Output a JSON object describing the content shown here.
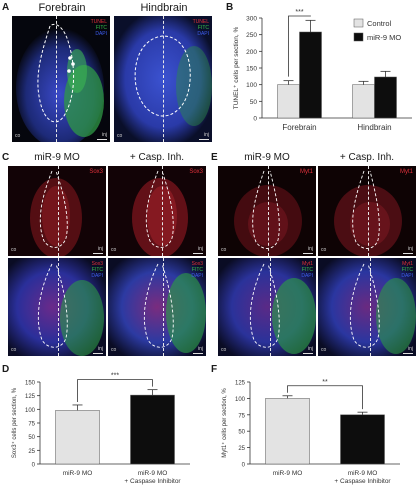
{
  "panels": {
    "A": {
      "letter": "A",
      "titles": [
        "Forebrain",
        "Hindbrain"
      ],
      "tags": [
        "TUNEL",
        "FITC",
        "DAPI"
      ],
      "co": "co",
      "inj": "inj"
    },
    "B": {
      "letter": "B"
    },
    "C": {
      "letter": "C",
      "titles": [
        "miR-9 MO",
        "+ Casp. Inh."
      ],
      "top_tags": [
        "Sox3"
      ],
      "bottom_tags": [
        "Sox3",
        "FITC",
        "DAPI"
      ],
      "co": "co",
      "inj": "inj"
    },
    "E": {
      "letter": "E",
      "titles": [
        "miR-9 MO",
        "+ Casp. Inh."
      ],
      "top_tags": [
        "Myt1"
      ],
      "bottom_tags": [
        "Myt1",
        "FITC",
        "DAPI"
      ],
      "co": "co",
      "inj": "inj"
    },
    "D": {
      "letter": "D"
    },
    "F": {
      "letter": "F"
    }
  },
  "colors": {
    "control_bar": "#e3e3e3",
    "mo_bar": "#0d0d0d",
    "tunel": "#e0303a",
    "fitc": "#37c24a",
    "dapi": "#3d5df0"
  },
  "chart_data": [
    {
      "id": "B",
      "type": "bar",
      "categories": [
        "Forebrain",
        "Hindbrain"
      ],
      "series": [
        {
          "name": "Control",
          "values": [
            100,
            100
          ],
          "errors": [
            12,
            10
          ]
        },
        {
          "name": "miR-9 MO",
          "values": [
            258,
            123
          ],
          "errors": [
            35,
            17
          ]
        }
      ],
      "ylabel": "TUNEL⁺ cells per section, %",
      "ylim": [
        0,
        300
      ],
      "yticks": [
        0,
        50,
        100,
        150,
        200,
        250,
        300
      ],
      "significance": "***",
      "legend": "top-right"
    },
    {
      "id": "D",
      "type": "bar",
      "categories": [
        "miR-9 MO",
        "miR-9 MO\n+ Caspase Inhibitor"
      ],
      "values": [
        98,
        126
      ],
      "errors": [
        10,
        10
      ],
      "colors": [
        "#e3e3e3",
        "#0d0d0d"
      ],
      "ylabel": "Sox3⁺ cells per section, %",
      "ylim": [
        0,
        150
      ],
      "yticks": [
        0,
        25,
        50,
        75,
        100,
        125,
        150
      ],
      "significance": "***"
    },
    {
      "id": "F",
      "type": "bar",
      "categories": [
        "miR-9 MO",
        "miR-9 MO\n+ Caspase Inhibitor"
      ],
      "values": [
        100,
        75
      ],
      "errors": [
        4,
        4
      ],
      "colors": [
        "#e3e3e3",
        "#0d0d0d"
      ],
      "ylabel": "Myt1⁺ cells per section, %",
      "ylim": [
        0,
        125
      ],
      "yticks": [
        0,
        25,
        50,
        75,
        100,
        125
      ],
      "significance": "**"
    }
  ]
}
